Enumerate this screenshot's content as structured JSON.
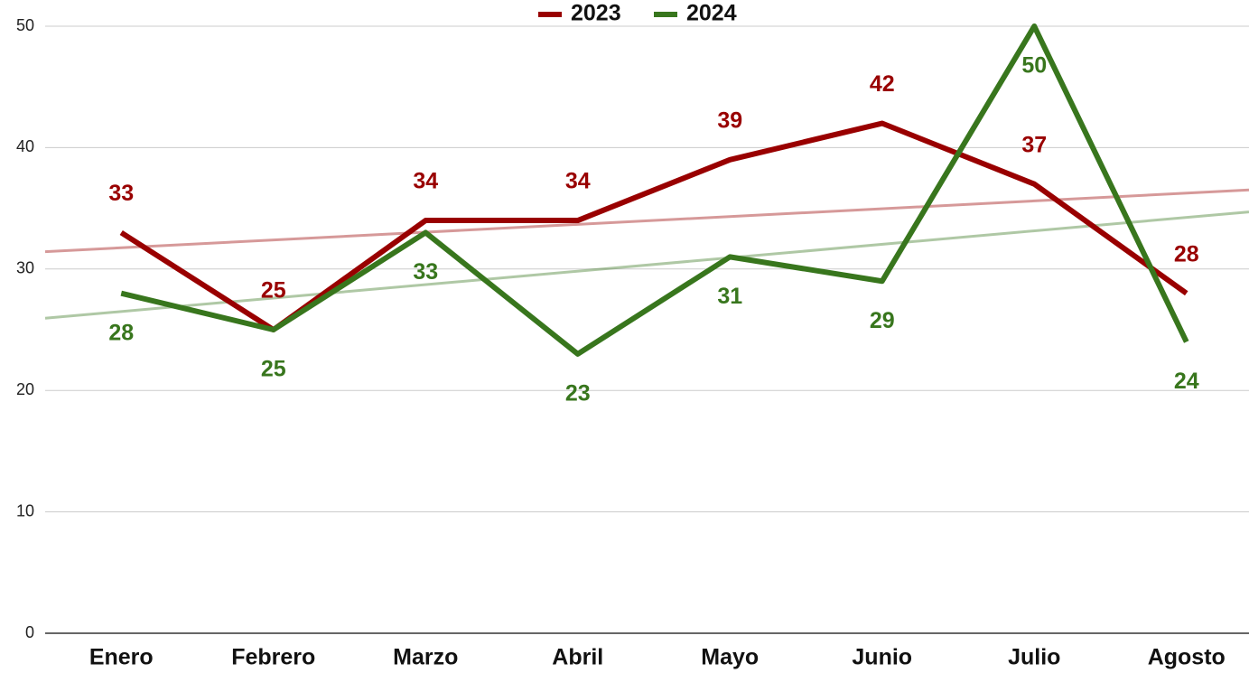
{
  "chart_data": {
    "type": "line",
    "categories": [
      "Enero",
      "Febrero",
      "Marzo",
      "Abril",
      "Mayo",
      "Junio",
      "Julio",
      "Agosto"
    ],
    "series": [
      {
        "name": "2023",
        "color": "#990000",
        "values": [
          33,
          25,
          34,
          34,
          39,
          42,
          37,
          28
        ]
      },
      {
        "name": "2024",
        "color": "#38761d",
        "values": [
          28,
          25,
          33,
          23,
          31,
          29,
          50,
          24
        ]
      }
    ],
    "ylim": [
      0,
      50
    ],
    "yticks": [
      0,
      10,
      20,
      30,
      40,
      50
    ],
    "grid": true,
    "legend": "top",
    "trendline": true,
    "data_labels": true
  }
}
